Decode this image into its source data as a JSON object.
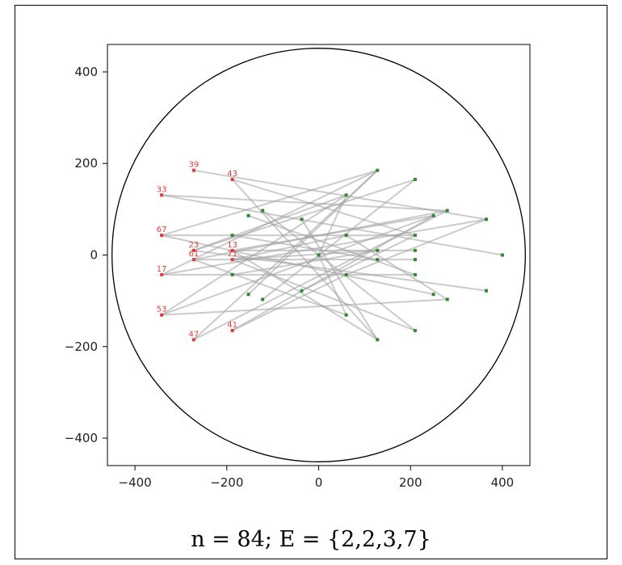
{
  "caption": "n = 84;  E = {2,2,3,7}",
  "chart_data": {
    "type": "scatter",
    "title": "",
    "xlabel": "",
    "ylabel": "",
    "xlim": [
      -460,
      460
    ],
    "ylim": [
      -460,
      460
    ],
    "xticks": [
      -400,
      -200,
      0,
      200,
      400
    ],
    "yticks": [
      -400,
      -200,
      0,
      200,
      400
    ],
    "xtick_labels": [
      "−400",
      "−200",
      "0",
      "200",
      "400"
    ],
    "ytick_labels": [
      "−400",
      "−200",
      "0",
      "200",
      "400"
    ],
    "grid": false,
    "circle": {
      "cx": 0,
      "cy": 0,
      "r": 450,
      "color": "#000000"
    },
    "colors": {
      "edge": "#a0a0a0",
      "node_green": "#2e8b2e",
      "node_red": "#e03c3c",
      "label": "#e03c3c"
    },
    "red_nodes": [
      {
        "label": "39",
        "x": -272,
        "y": 185
      },
      {
        "label": "43",
        "x": -188,
        "y": 165
      },
      {
        "label": "33",
        "x": -342,
        "y": 131
      },
      {
        "label": "67",
        "x": -342,
        "y": 43
      },
      {
        "label": "23",
        "x": -272,
        "y": 10
      },
      {
        "label": "13",
        "x": -188,
        "y": 10
      },
      {
        "label": "61",
        "x": -272,
        "y": -10
      },
      {
        "label": "71",
        "x": -188,
        "y": -10
      },
      {
        "label": "17",
        "x": -342,
        "y": -43
      },
      {
        "label": "53",
        "x": -342,
        "y": -131
      },
      {
        "label": "47",
        "x": -272,
        "y": -185
      },
      {
        "label": "41",
        "x": -188,
        "y": -165
      }
    ],
    "green_nodes": [
      {
        "x": 128,
        "y": 185
      },
      {
        "x": 210,
        "y": 165
      },
      {
        "x": 60,
        "y": 131
      },
      {
        "x": -153,
        "y": 86
      },
      {
        "x": -122,
        "y": 97
      },
      {
        "x": -37,
        "y": 78
      },
      {
        "x": 250,
        "y": 86
      },
      {
        "x": 280,
        "y": 97
      },
      {
        "x": 365,
        "y": 78
      },
      {
        "x": -188,
        "y": 43
      },
      {
        "x": 60,
        "y": 43
      },
      {
        "x": 210,
        "y": 43
      },
      {
        "x": 128,
        "y": 10
      },
      {
        "x": 210,
        "y": 10
      },
      {
        "x": 0,
        "y": 0
      },
      {
        "x": 400,
        "y": 0
      },
      {
        "x": 128,
        "y": -10
      },
      {
        "x": 210,
        "y": -10
      },
      {
        "x": -188,
        "y": -43
      },
      {
        "x": 60,
        "y": -43
      },
      {
        "x": 210,
        "y": -43
      },
      {
        "x": -153,
        "y": -86
      },
      {
        "x": -122,
        "y": -97
      },
      {
        "x": -37,
        "y": -78
      },
      {
        "x": 250,
        "y": -86
      },
      {
        "x": 280,
        "y": -97
      },
      {
        "x": 365,
        "y": -78
      },
      {
        "x": 60,
        "y": -131
      },
      {
        "x": 128,
        "y": -185
      },
      {
        "x": 210,
        "y": -165
      }
    ],
    "edges": [
      [
        -272,
        185,
        365,
        78
      ],
      [
        -188,
        165,
        210,
        43
      ],
      [
        -188,
        165,
        128,
        -185
      ],
      [
        -342,
        131,
        400,
        0
      ],
      [
        -342,
        131,
        280,
        97
      ],
      [
        -342,
        43,
        210,
        43
      ],
      [
        -342,
        43,
        128,
        185
      ],
      [
        -342,
        43,
        250,
        -86
      ],
      [
        -272,
        10,
        210,
        165
      ],
      [
        -272,
        10,
        365,
        -78
      ],
      [
        -272,
        10,
        60,
        131
      ],
      [
        -188,
        10,
        210,
        10
      ],
      [
        -188,
        10,
        250,
        86
      ],
      [
        -188,
        10,
        128,
        -185
      ],
      [
        -272,
        -10,
        210,
        -10
      ],
      [
        -272,
        -10,
        280,
        97
      ],
      [
        -272,
        -10,
        60,
        -131
      ],
      [
        -188,
        -10,
        128,
        10
      ],
      [
        -188,
        -10,
        210,
        -165
      ],
      [
        -188,
        -10,
        60,
        43
      ],
      [
        -342,
        -43,
        210,
        -43
      ],
      [
        -342,
        -43,
        128,
        185
      ],
      [
        -342,
        -43,
        365,
        78
      ],
      [
        -342,
        -131,
        280,
        -97
      ],
      [
        -342,
        -131,
        60,
        131
      ],
      [
        -342,
        -131,
        250,
        86
      ],
      [
        -272,
        -185,
        128,
        185
      ],
      [
        -272,
        -185,
        280,
        97
      ],
      [
        -188,
        -165,
        250,
        86
      ],
      [
        -188,
        -165,
        60,
        -43
      ],
      [
        -153,
        86,
        210,
        -43
      ],
      [
        -122,
        97,
        210,
        -165
      ],
      [
        -37,
        78,
        128,
        -185
      ],
      [
        -153,
        -86,
        128,
        185
      ],
      [
        -122,
        -97,
        210,
        165
      ],
      [
        -37,
        -78,
        210,
        43
      ],
      [
        0,
        0,
        60,
        131
      ],
      [
        0,
        0,
        60,
        -131
      ],
      [
        -188,
        43,
        128,
        -10
      ],
      [
        -188,
        -43,
        128,
        10
      ],
      [
        60,
        43,
        280,
        -97
      ],
      [
        60,
        -43,
        365,
        78
      ]
    ]
  }
}
